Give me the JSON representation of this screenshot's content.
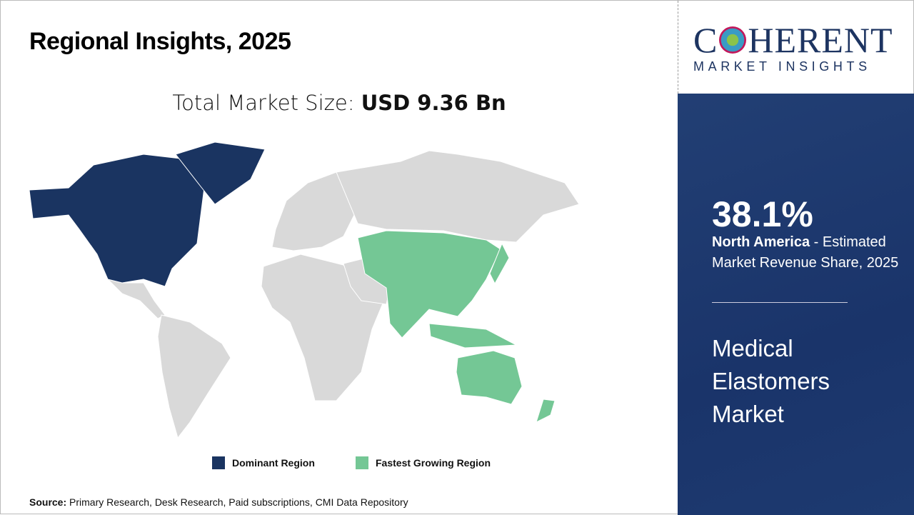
{
  "title": "Regional Insights, 2025",
  "total_label": "Total Market Size: ",
  "total_value": "USD 9.36 Bn",
  "logo": {
    "main_pre": "C",
    "main_post": "HERENT",
    "sub": "MARKET INSIGHTS"
  },
  "panel": {
    "share": "38.1%",
    "region": "North America",
    "desc": " - Estimated Market Revenue Share, 2025",
    "market_lines": [
      "Medical",
      "Elastomers",
      "Market"
    ]
  },
  "legend": [
    {
      "label": "Dominant Region",
      "color": "#1a3461"
    },
    {
      "label": "Fastest Growing Region",
      "color": "#74c795"
    }
  ],
  "source_label": "Source:",
  "source_text": " Primary Research, Desk Research, Paid subscriptions, CMI Data Repository",
  "colors": {
    "other": "#d9d9d9",
    "panel": "#1e3a6e"
  }
}
